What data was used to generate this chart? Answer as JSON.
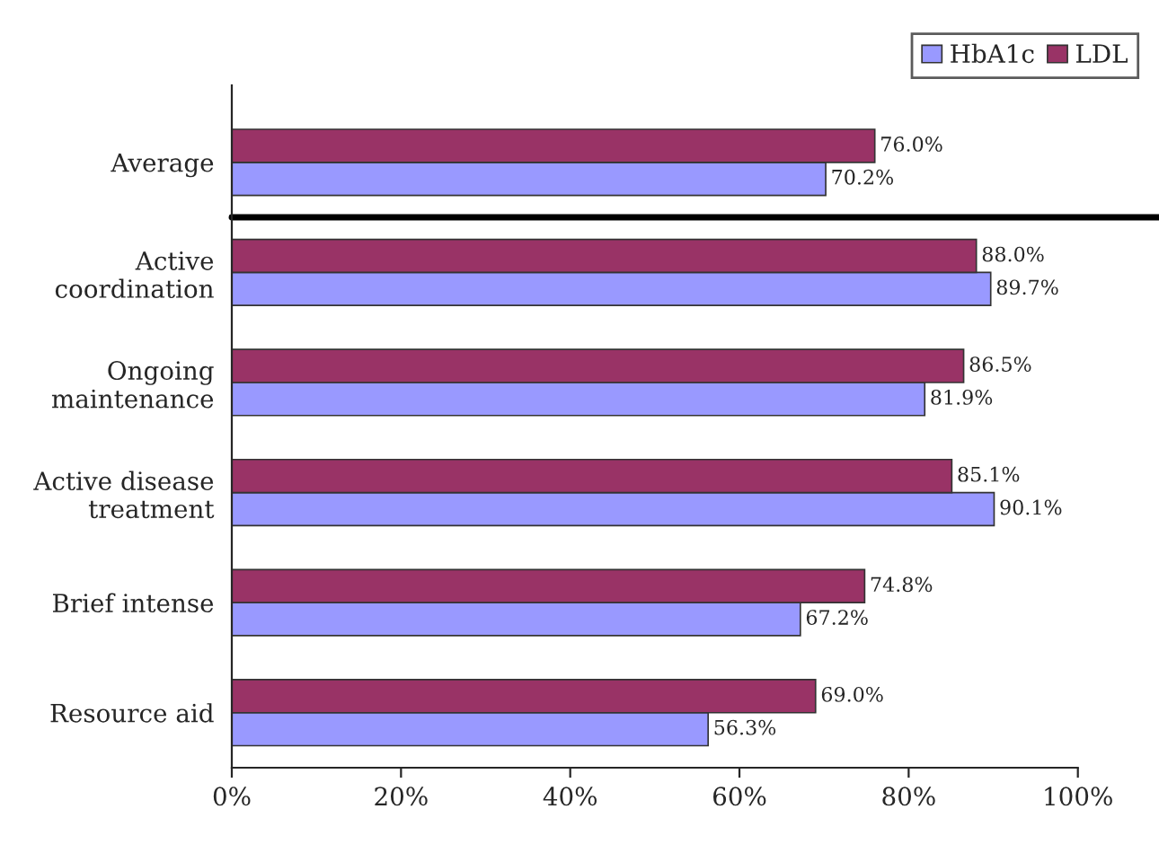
{
  "chart_data": {
    "type": "bar",
    "orientation": "horizontal",
    "categories": [
      "Average",
      "Active\ncoordination",
      "Ongoing\nmaintenance",
      "Active disease\ntreatment",
      "Brief intense",
      "Resource aid"
    ],
    "series": [
      {
        "name": "HbA1c",
        "color": "#9999ff",
        "values": [
          70.2,
          89.7,
          81.9,
          90.1,
          67.2,
          56.3
        ],
        "value_labels": [
          "70.2%",
          "89.7%",
          "81.9%",
          "90.1%",
          "67.2%",
          "56.3%"
        ]
      },
      {
        "name": "LDL",
        "color": "#993366",
        "values": [
          76.0,
          88.0,
          86.5,
          85.1,
          74.8,
          69.0
        ],
        "value_labels": [
          "76.0%",
          "88.0%",
          "86.5%",
          "85.1%",
          "74.8%",
          "69.0%"
        ]
      }
    ],
    "xlim": [
      0,
      100
    ],
    "xticks": [
      {
        "value": 0,
        "label": "0%"
      },
      {
        "value": 20,
        "label": "20%"
      },
      {
        "value": 40,
        "label": "40%"
      },
      {
        "value": 60,
        "label": "60%"
      },
      {
        "value": 80,
        "label": "80%"
      },
      {
        "value": 100,
        "label": "100%"
      }
    ],
    "legend": "top right",
    "grid": false
  }
}
